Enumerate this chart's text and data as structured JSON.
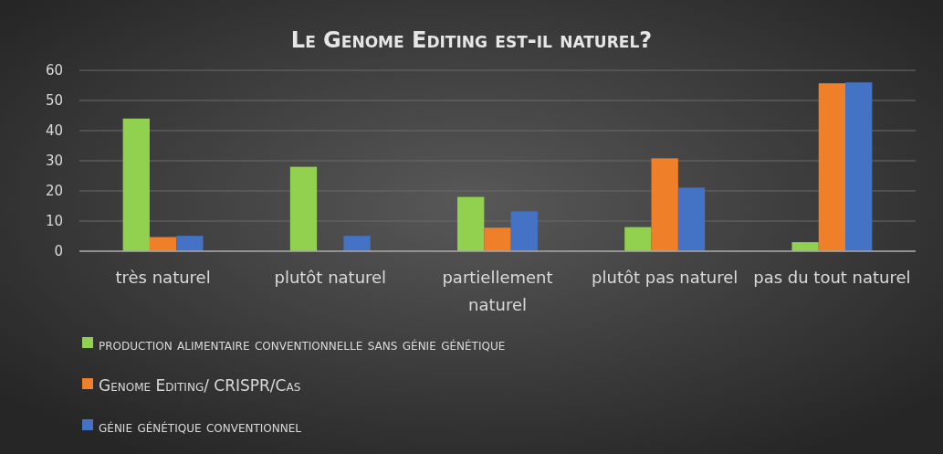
{
  "chart_data": {
    "type": "bar",
    "title": "Le Genome Editing est-il naturel?",
    "categories": [
      "très naturel",
      "plutôt naturel",
      "partiellement naturel",
      "plutôt pas naturel",
      "pas du tout naturel"
    ],
    "series": [
      {
        "name": "production alimentaire conventionnelle sans génie génétique",
        "color": "#92d050",
        "values": [
          44,
          28,
          18,
          8,
          3
        ]
      },
      {
        "name": "Genome Editing/ CRISPR/Cas",
        "color": "#f07f2a",
        "values": [
          4.7,
          0,
          7.8,
          30.8,
          55.7
        ]
      },
      {
        "name": "génie génétique conventionnel",
        "color": "#4472c4",
        "values": [
          5.1,
          5.1,
          13.2,
          21.1,
          56
        ]
      }
    ],
    "ylim": [
      0,
      60
    ],
    "yticks": [
      0,
      10,
      20,
      30,
      40,
      50,
      60
    ],
    "grid": "y",
    "legend": "bottom"
  }
}
